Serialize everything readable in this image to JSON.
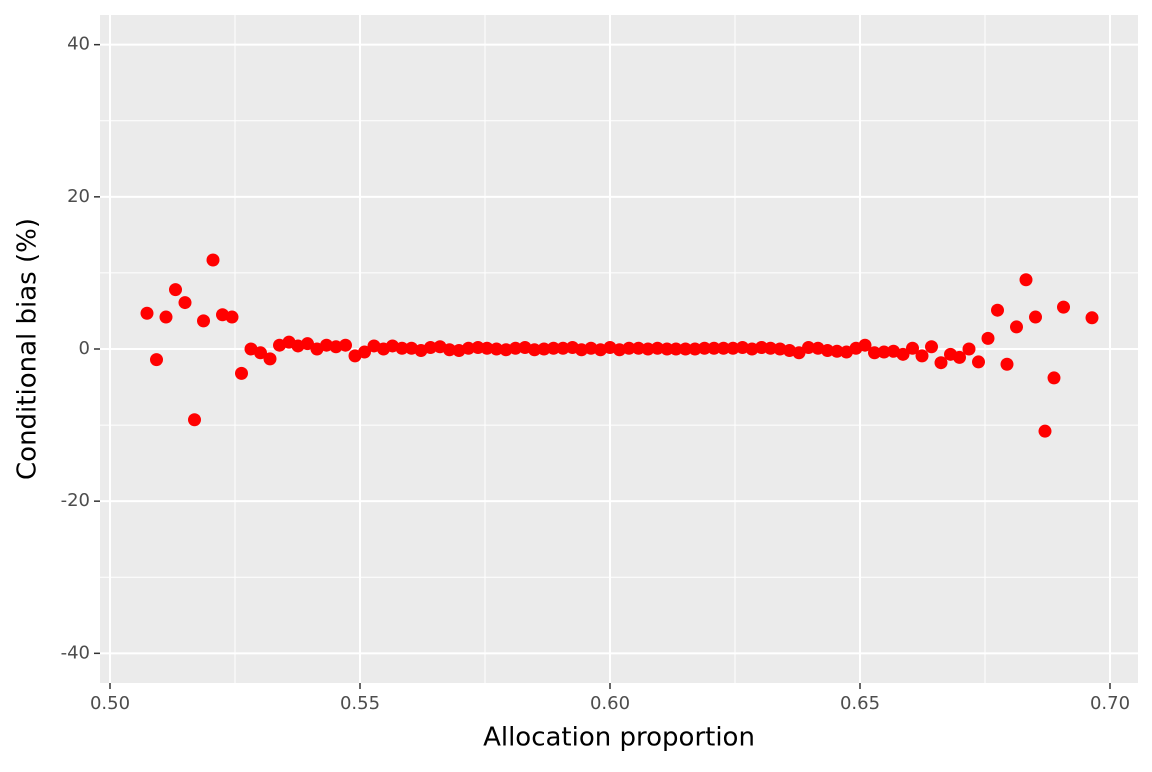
{
  "chart_data": {
    "type": "scatter",
    "x_label": "Allocation proportion",
    "y_label": "Conditional bias (%)",
    "color": "#ff0000",
    "grid": true,
    "xlim": [
      0.498,
      0.7056
    ],
    "ylim": [
      -43.9,
      43.9
    ],
    "xticks": [
      {
        "value": 0.5,
        "label": "0.50"
      },
      0.55,
      {
        "value": 0.6,
        "label": "0.60"
      },
      0.65,
      {
        "value": 0.7,
        "label": "0.70"
      }
    ],
    "yticks": [
      -40,
      -20,
      0,
      20,
      40
    ],
    "minor_xticks": [
      0.525,
      0.575,
      0.625,
      0.675
    ],
    "minor_yticks": [
      -30,
      -10,
      10,
      30
    ],
    "x": [
      0.5074,
      0.5093,
      0.5112,
      0.5131,
      0.515,
      0.5169,
      0.5187,
      0.5206,
      0.5225,
      0.5244,
      0.5263,
      0.5282,
      0.5301,
      0.532,
      0.5339,
      0.5358,
      0.5376,
      0.5395,
      0.5414,
      0.5433,
      0.5452,
      0.5471,
      0.549,
      0.5509,
      0.5528,
      0.5547,
      0.5565,
      0.5584,
      0.5603,
      0.5622,
      0.5641,
      0.566,
      0.5679,
      0.5698,
      0.5717,
      0.5736,
      0.5754,
      0.5773,
      0.5792,
      0.5811,
      0.583,
      0.5849,
      0.5868,
      0.5887,
      0.5906,
      0.5925,
      0.5943,
      0.5962,
      0.5981,
      0.6,
      0.6019,
      0.6038,
      0.6057,
      0.6076,
      0.6095,
      0.6114,
      0.6132,
      0.6151,
      0.617,
      0.6189,
      0.6208,
      0.6227,
      0.6246,
      0.6265,
      0.6284,
      0.6303,
      0.6321,
      0.634,
      0.6359,
      0.6378,
      0.6397,
      0.6416,
      0.6435,
      0.6454,
      0.6473,
      0.6492,
      0.651,
      0.6529,
      0.6548,
      0.6567,
      0.6586,
      0.6605,
      0.6624,
      0.6643,
      0.6662,
      0.6681,
      0.6699,
      0.6718,
      0.6737,
      0.6756,
      0.6775,
      0.6794,
      0.6813,
      0.6832,
      0.6851,
      0.687,
      0.6888,
      0.6907,
      0.6964
    ],
    "values": [
      4.7,
      -1.4,
      4.2,
      7.8,
      6.1,
      -9.3,
      3.7,
      11.7,
      4.5,
      4.2,
      -3.2,
      0,
      -0.5,
      -1.3,
      0.5,
      0.9,
      0.4,
      0.7,
      0,
      0.5,
      0.3,
      0.5,
      -0.9,
      -0.4,
      0.4,
      0,
      0.4,
      0.1,
      0.1,
      -0.2,
      0.2,
      0.3,
      -0.1,
      -0.2,
      0.1,
      0.2,
      0.1,
      0,
      -0.1,
      0.1,
      0.2,
      -0.1,
      0,
      0.1,
      0.1,
      0.2,
      -0.1,
      0.1,
      -0.1,
      0.2,
      -0.1,
      0.1,
      0.1,
      0,
      0.1,
      0,
      0,
      0,
      0,
      0.1,
      0.1,
      0.1,
      0.1,
      0.2,
      0,
      0.2,
      0.1,
      0,
      -0.2,
      -0.5,
      0.2,
      0.1,
      -0.2,
      -0.3,
      -0.4,
      0.1,
      0.5,
      -0.5,
      -0.4,
      -0.3,
      -0.7,
      0.1,
      -0.9,
      0.3,
      -1.8,
      -0.7,
      -1.1,
      0,
      -1.7,
      1.4,
      5.1,
      -2.0,
      2.9,
      9.1,
      4.2,
      -10.8,
      -3.8,
      5.5,
      4.1
    ]
  }
}
